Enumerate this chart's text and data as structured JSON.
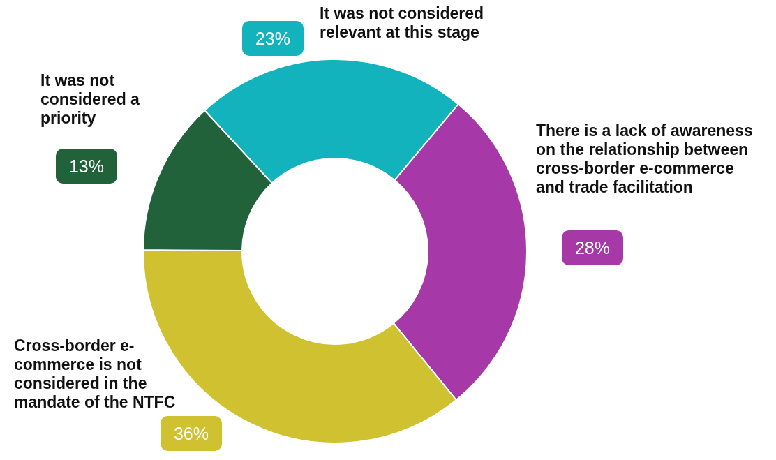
{
  "chart_data": {
    "type": "donut",
    "categories": [
      "It was not considered relevant at this stage",
      "There is a lack of awareness on the relationship between cross-border e-commerce and trade facilitation",
      "Cross-border e-commerce is not considered in the mandate of the NTFC",
      "It was not considered a priority"
    ],
    "values": [
      23,
      28,
      36,
      13
    ],
    "value_labels": [
      "23%",
      "28%",
      "36%",
      "13%"
    ],
    "colors": [
      "#12b3bd",
      "#a638a8",
      "#cfc12f",
      "#21623a"
    ]
  }
}
